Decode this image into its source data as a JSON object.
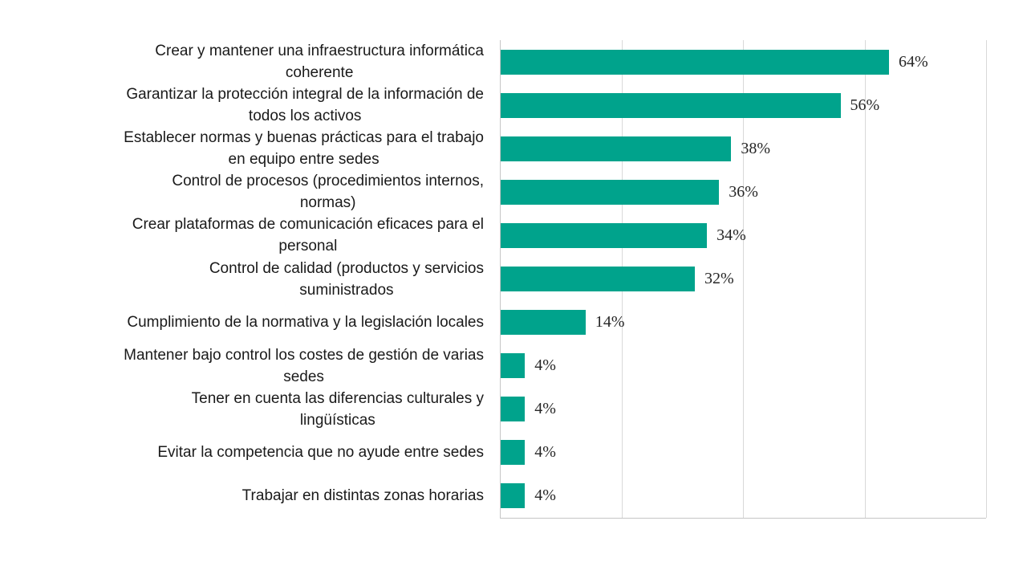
{
  "chart_data": {
    "type": "bar",
    "orientation": "horizontal",
    "title": "",
    "xlabel": "",
    "ylabel": "",
    "xlim": [
      0,
      80
    ],
    "gridline_interval": 20,
    "grid": true,
    "legend": false,
    "categories": [
      "Crear y mantener una infraestructura informática\ncoherente",
      "Garantizar la protección integral de la información de\ntodos los activos",
      "Establecer normas y buenas prácticas para el trabajo\nen equipo entre sedes",
      "Control de procesos (procedimientos internos,\nnormas)",
      "Crear plataformas de comunicación eficaces para el\npersonal",
      "Control de calidad (productos y servicios\nsuministrados",
      "Cumplimiento de la normativa y la legislación locales",
      "Mantener bajo control los costes de gestión de varias\nsedes",
      "Tener en cuenta las diferencias culturales y\nlingüísticas",
      "Evitar la competencia que no ayude entre sedes",
      "Trabajar en distintas zonas horarias"
    ],
    "values": [
      64,
      56,
      38,
      36,
      34,
      32,
      14,
      4,
      4,
      4,
      4
    ],
    "value_labels": [
      "64%",
      "56%",
      "38%",
      "36%",
      "34%",
      "32%",
      "14%",
      "4%",
      "4%",
      "4%",
      "4%"
    ],
    "colors": {
      "bar": "#00A38C",
      "gridline": "#D9D9D9",
      "axis": "#C6C6C6",
      "category_text": "#1A1A1A",
      "value_text": "#262626",
      "background": "#FFFFFF"
    }
  }
}
